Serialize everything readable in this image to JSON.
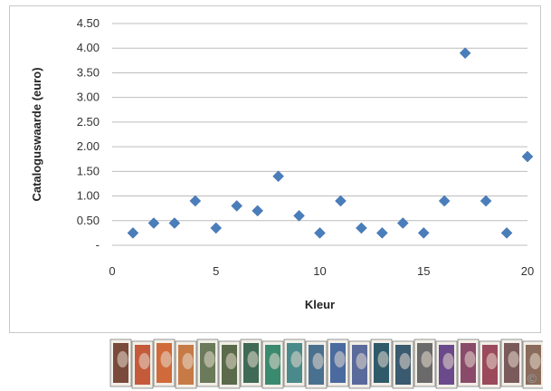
{
  "chart_data": {
    "type": "scatter",
    "title": "",
    "xlabel": "Kleur",
    "ylabel": "Cataloguswaarde (euro)",
    "xlim": [
      0,
      20
    ],
    "ylim": [
      0,
      4.5
    ],
    "xticks": [
      "0",
      "5",
      "10",
      "15",
      "20"
    ],
    "yticks": [
      "-",
      "0.50",
      "1.00",
      "1.50",
      "2.00",
      "2.50",
      "3.00",
      "3.50",
      "4.00",
      "4.50"
    ],
    "grid": "horizontal",
    "marker": "diamond",
    "color": "#4a7ebb",
    "x": [
      1,
      2,
      3,
      4,
      5,
      6,
      7,
      8,
      9,
      10,
      11,
      12,
      13,
      14,
      15,
      16,
      17,
      18,
      19,
      20
    ],
    "y": [
      0.25,
      0.45,
      0.45,
      0.9,
      0.35,
      0.8,
      0.7,
      1.4,
      0.6,
      0.25,
      0.9,
      0.35,
      0.25,
      0.45,
      0.25,
      0.9,
      3.9,
      0.9,
      0.25,
      1.8
    ]
  },
  "stamps": {
    "colors": [
      "#7a4a3a",
      "#c55a3a",
      "#d06a3a",
      "#c77a45",
      "#6a7a5a",
      "#5a6a4a",
      "#3f6a55",
      "#3a8a70",
      "#4a8a8a",
      "#4a7090",
      "#4a6aa0",
      "#5a6a9a",
      "#2f5a6a",
      "#3a5a70",
      "#6a6a6a",
      "#6a4a8a",
      "#8a4a6a",
      "#9a4a5a",
      "#7a5a5a",
      "#8a6a5a"
    ]
  },
  "watermark": "©"
}
